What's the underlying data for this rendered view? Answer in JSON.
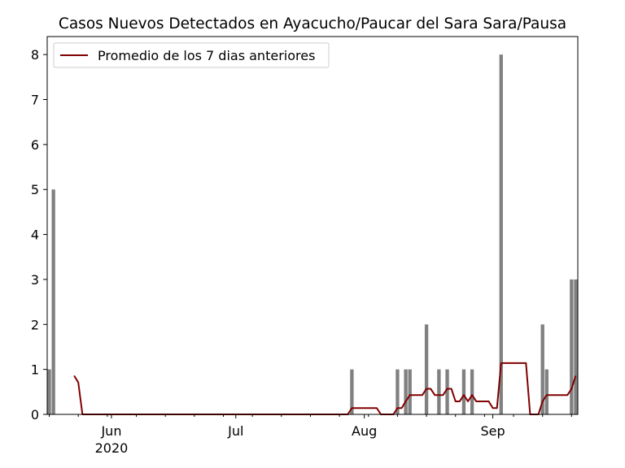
{
  "chart_data": {
    "type": "bar",
    "title": "Casos Nuevos Detectados en Ayacucho/Paucar del Sara Sara/Pausa",
    "xlabel": "",
    "ylabel": "",
    "x_range": [
      "2020-05-17",
      "2020-09-21"
    ],
    "ylim": [
      0,
      8.4
    ],
    "y_ticks": [
      0,
      1,
      2,
      3,
      4,
      5,
      6,
      7,
      8
    ],
    "x_ticks": [
      {
        "date": "2020-06-01",
        "label": "Jun",
        "sublabel": "2020"
      },
      {
        "date": "2020-07-01",
        "label": "Jul",
        "sublabel": ""
      },
      {
        "date": "2020-08-01",
        "label": "Aug",
        "sublabel": ""
      },
      {
        "date": "2020-09-01",
        "label": "Sep",
        "sublabel": ""
      }
    ],
    "legend": {
      "position": "top-left",
      "entries": [
        "Promedio de los 7 dias anteriores"
      ]
    },
    "colors": {
      "bars": "#808080",
      "line": "#800000"
    },
    "bars": [
      {
        "date": "2020-05-17",
        "value": 1
      },
      {
        "date": "2020-05-18",
        "value": 5
      },
      {
        "date": "2020-07-29",
        "value": 1
      },
      {
        "date": "2020-08-09",
        "value": 1
      },
      {
        "date": "2020-08-11",
        "value": 1
      },
      {
        "date": "2020-08-12",
        "value": 1
      },
      {
        "date": "2020-08-16",
        "value": 2
      },
      {
        "date": "2020-08-19",
        "value": 1
      },
      {
        "date": "2020-08-21",
        "value": 1
      },
      {
        "date": "2020-08-25",
        "value": 1
      },
      {
        "date": "2020-08-27",
        "value": 1
      },
      {
        "date": "2020-09-03",
        "value": 8
      },
      {
        "date": "2020-09-13",
        "value": 2
      },
      {
        "date": "2020-09-14",
        "value": 1
      },
      {
        "date": "2020-09-20",
        "value": 3
      },
      {
        "date": "2020-09-21",
        "value": 3
      }
    ],
    "series": [
      {
        "name": "Promedio de los 7 dias anteriores",
        "points": [
          [
            "2020-05-23",
            0.86
          ],
          [
            "2020-05-24",
            0.71
          ],
          [
            "2020-05-25",
            0
          ],
          [
            "2020-07-28",
            0
          ],
          [
            "2020-07-29",
            0.14
          ],
          [
            "2020-08-04",
            0.14
          ],
          [
            "2020-08-05",
            0
          ],
          [
            "2020-08-08",
            0
          ],
          [
            "2020-08-09",
            0.14
          ],
          [
            "2020-08-10",
            0.14
          ],
          [
            "2020-08-11",
            0.29
          ],
          [
            "2020-08-12",
            0.43
          ],
          [
            "2020-08-15",
            0.43
          ],
          [
            "2020-08-16",
            0.57
          ],
          [
            "2020-08-17",
            0.57
          ],
          [
            "2020-08-18",
            0.43
          ],
          [
            "2020-08-20",
            0.43
          ],
          [
            "2020-08-21",
            0.57
          ],
          [
            "2020-08-22",
            0.57
          ],
          [
            "2020-08-23",
            0.29
          ],
          [
            "2020-08-24",
            0.29
          ],
          [
            "2020-08-25",
            0.43
          ],
          [
            "2020-08-26",
            0.29
          ],
          [
            "2020-08-27",
            0.43
          ],
          [
            "2020-08-28",
            0.29
          ],
          [
            "2020-08-31",
            0.29
          ],
          [
            "2020-09-01",
            0.14
          ],
          [
            "2020-09-02",
            0.14
          ],
          [
            "2020-09-03",
            1.14
          ],
          [
            "2020-09-09",
            1.14
          ],
          [
            "2020-09-10",
            0
          ],
          [
            "2020-09-12",
            0
          ],
          [
            "2020-09-13",
            0.29
          ],
          [
            "2020-09-14",
            0.43
          ],
          [
            "2020-09-19",
            0.43
          ],
          [
            "2020-09-20",
            0.57
          ],
          [
            "2020-09-21",
            0.86
          ]
        ]
      }
    ]
  }
}
